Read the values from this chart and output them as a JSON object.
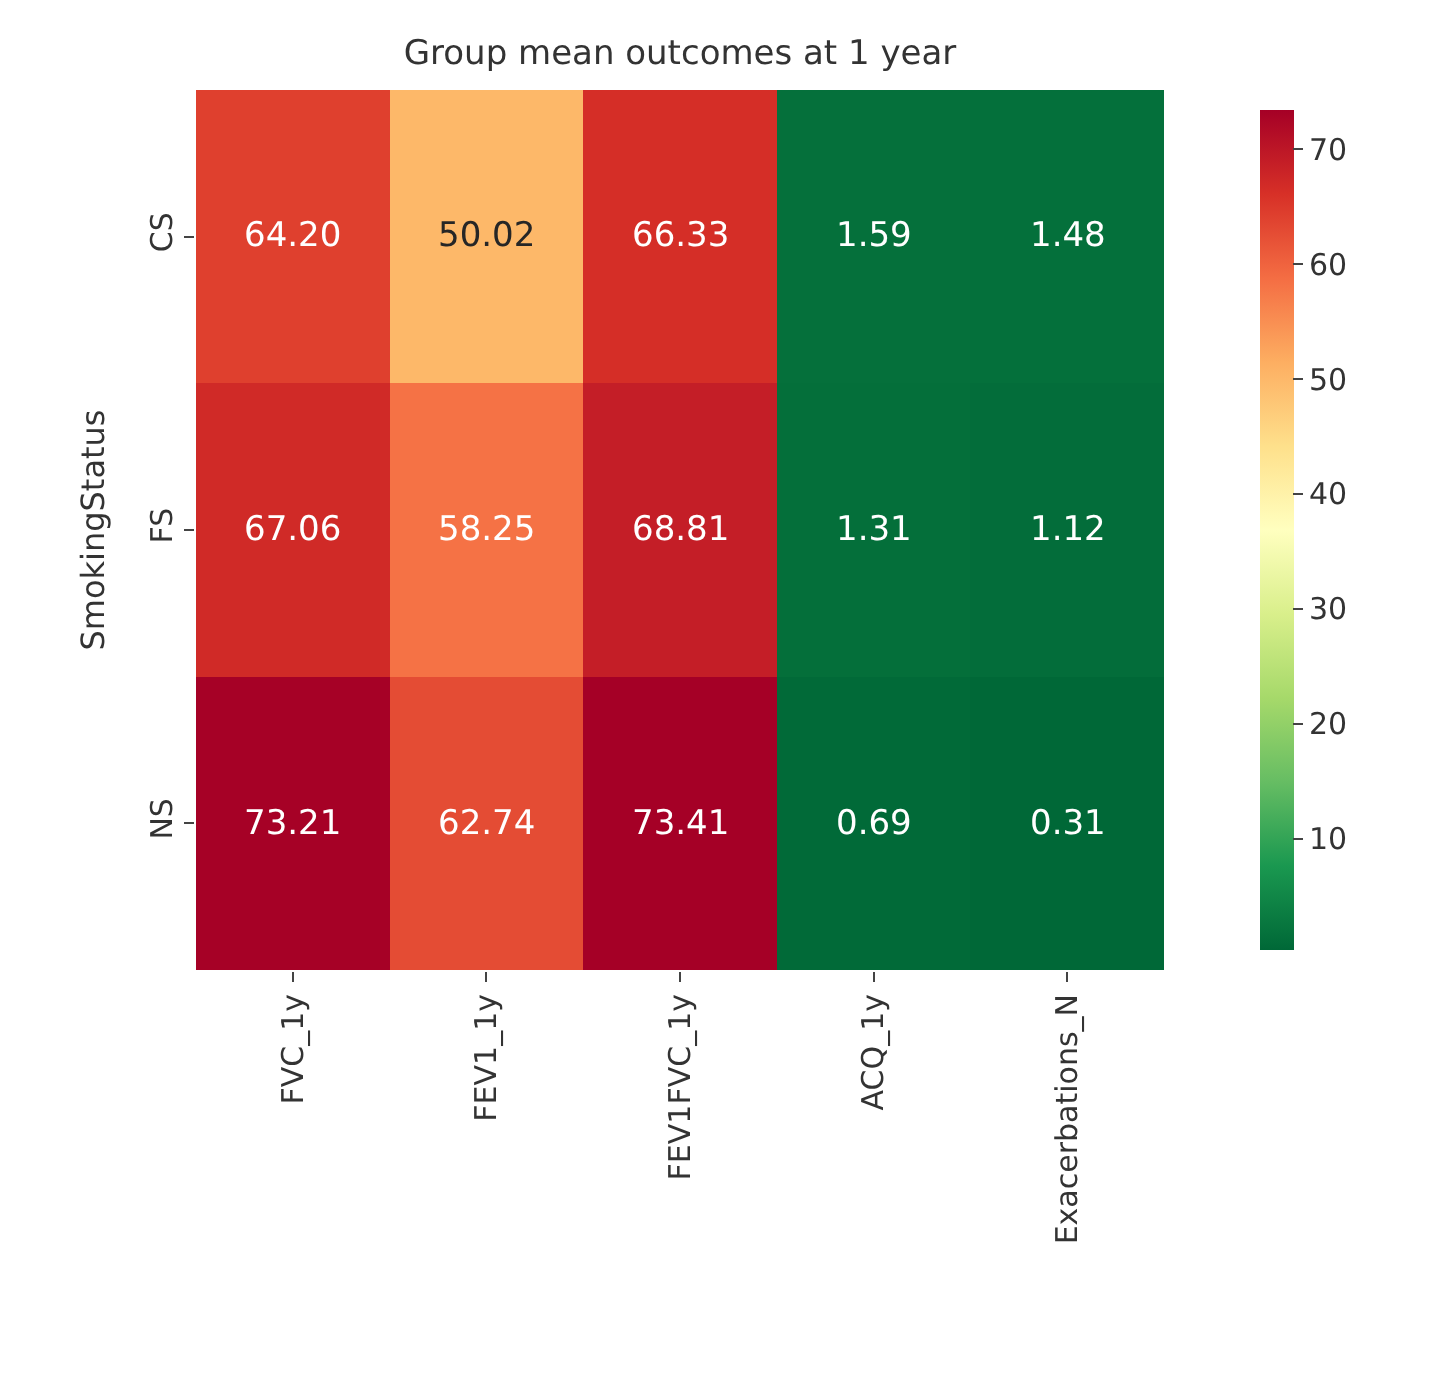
{
  "chart_data": {
    "type": "heatmap",
    "title": "Group mean outcomes at 1 year",
    "ylabel": "SmokingStatus",
    "categories": [
      "FVC_1y",
      "FEV1_1y",
      "FEV1FVC_1y",
      "ACQ_1y",
      "Exacerbations_N"
    ],
    "y_categories": [
      "CS",
      "FS",
      "NS"
    ],
    "cells": [
      [
        64.2,
        50.02,
        66.33,
        1.59,
        1.48
      ],
      [
        67.06,
        58.25,
        68.81,
        1.31,
        1.12
      ],
      [
        73.21,
        62.74,
        73.41,
        0.69,
        0.31
      ]
    ],
    "cell_labels": [
      [
        "64.20",
        "50.02",
        "66.33",
        "1.59",
        "1.48"
      ],
      [
        "67.06",
        "58.25",
        "68.81",
        "1.31",
        "1.12"
      ],
      [
        "73.21",
        "62.74",
        "73.41",
        "0.69",
        "0.31"
      ]
    ],
    "clim": [
      0.31,
      73.41
    ],
    "cticks": [
      10,
      20,
      30,
      40,
      50,
      60,
      70
    ]
  }
}
